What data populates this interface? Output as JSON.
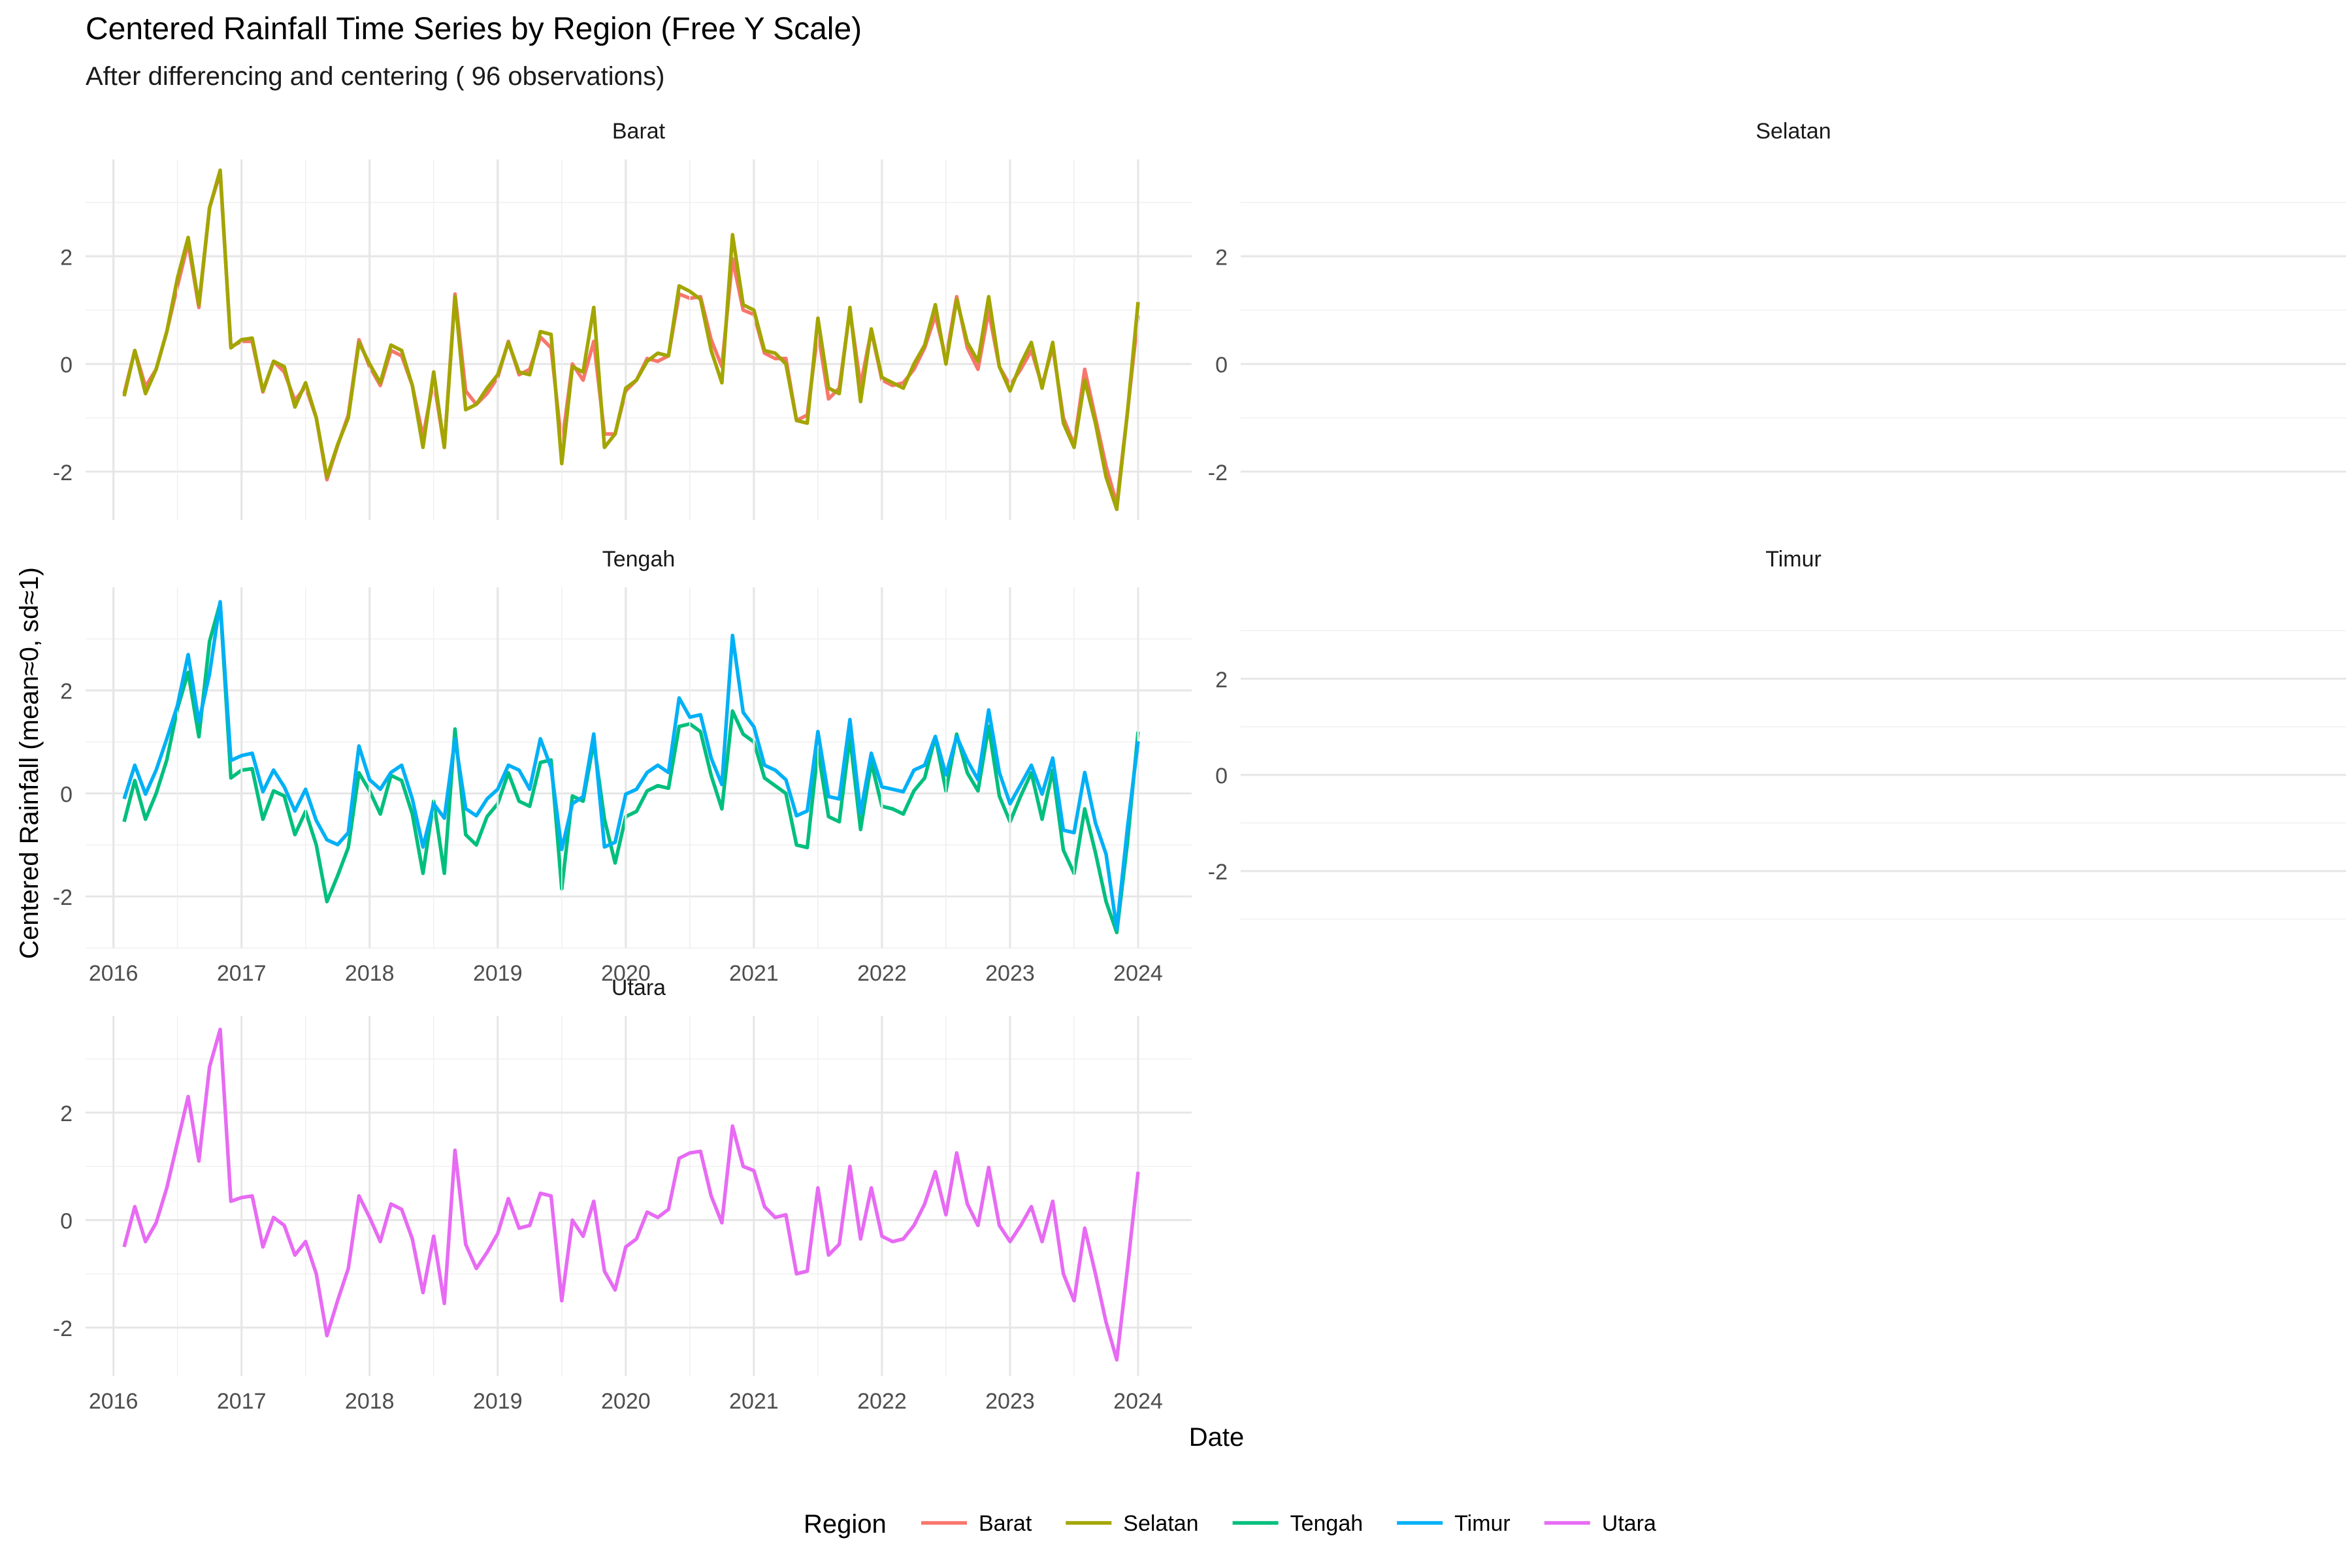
{
  "chart_data": {
    "type": "line",
    "title": "Centered Rainfall Time Series by Region (Free Y Scale)",
    "subtitle": "After differencing and centering ( 96  observations)",
    "xlabel": "Date",
    "ylabel": "Centered Rainfall (mean≈0, sd≈1)",
    "legend_title": "Region",
    "legend_position": "bottom",
    "grid": true,
    "x_ticks": [
      "2016",
      "2017",
      "2018",
      "2019",
      "2020",
      "2021",
      "2022",
      "2023",
      "2024"
    ],
    "x_start": "2016-02",
    "x_end": "2024-01",
    "y_ticks": [
      -2,
      0,
      2
    ],
    "series": [
      {
        "name": "Barat",
        "color": "#F8766D",
        "ylim": [
          -2.9,
          3.8
        ],
        "values": [
          -0.55,
          0.25,
          -0.42,
          -0.1,
          0.6,
          1.45,
          2.25,
          1.05,
          2.9,
          3.55,
          0.32,
          0.42,
          0.42,
          -0.52,
          0.05,
          -0.15,
          -0.68,
          -0.42,
          -1.0,
          -2.15,
          -1.52,
          -0.95,
          0.45,
          -0.05,
          -0.4,
          0.25,
          0.15,
          -0.4,
          -1.35,
          -0.3,
          -1.55,
          1.3,
          -0.5,
          -0.75,
          -0.55,
          -0.25,
          0.42,
          -0.2,
          -0.1,
          0.5,
          0.3,
          -1.5,
          0.0,
          -0.3,
          0.42,
          -1.3,
          -1.3,
          -0.5,
          -0.3,
          0.1,
          0.05,
          0.15,
          1.3,
          1.22,
          1.25,
          0.45,
          -0.05,
          1.95,
          1.0,
          0.92,
          0.2,
          0.1,
          0.1,
          -1.05,
          -0.95,
          0.6,
          -0.65,
          -0.45,
          1.0,
          -0.4,
          0.62,
          -0.3,
          -0.4,
          -0.35,
          -0.1,
          0.3,
          0.9,
          0.1,
          1.25,
          0.3,
          -0.1,
          0.98,
          -0.05,
          -0.4,
          -0.1,
          0.25,
          -0.4,
          0.32,
          -1.0,
          -1.5,
          -0.1,
          -1.0,
          -1.9,
          -2.6,
          -0.9,
          0.9
        ]
      },
      {
        "name": "Selatan",
        "color": "#A3A500",
        "ylim": [
          -2.9,
          3.8
        ],
        "values": [
          -0.6,
          0.25,
          -0.55,
          -0.1,
          0.6,
          1.6,
          2.35,
          1.1,
          2.9,
          3.6,
          0.3,
          0.45,
          0.48,
          -0.5,
          0.05,
          -0.05,
          -0.8,
          -0.35,
          -1.0,
          -2.1,
          -1.5,
          -1.0,
          0.4,
          0.0,
          -0.35,
          0.35,
          0.25,
          -0.4,
          -1.55,
          -0.15,
          -1.55,
          1.25,
          -0.85,
          -0.75,
          -0.45,
          -0.2,
          0.4,
          -0.15,
          -0.2,
          0.6,
          0.55,
          -1.85,
          -0.05,
          -0.15,
          1.05,
          -1.55,
          -1.3,
          -0.45,
          -0.3,
          0.05,
          0.2,
          0.15,
          1.45,
          1.35,
          1.2,
          0.25,
          -0.35,
          2.4,
          1.1,
          1.0,
          0.25,
          0.2,
          0.0,
          -1.05,
          -1.1,
          0.85,
          -0.45,
          -0.55,
          1.05,
          -0.7,
          0.65,
          -0.25,
          -0.35,
          -0.45,
          0.0,
          0.35,
          1.1,
          0.0,
          1.2,
          0.4,
          0.05,
          1.25,
          -0.05,
          -0.5,
          0.0,
          0.4,
          -0.45,
          0.4,
          -1.1,
          -1.55,
          -0.3,
          -1.1,
          -2.1,
          -2.7,
          -0.9,
          1.15
        ]
      },
      {
        "name": "Tengah",
        "color": "#00BF7D",
        "ylim": [
          -3.0,
          4.0
        ],
        "values": [
          -0.55,
          0.25,
          -0.5,
          0.0,
          0.65,
          1.65,
          2.35,
          1.1,
          2.95,
          3.7,
          0.3,
          0.45,
          0.48,
          -0.5,
          0.05,
          -0.05,
          -0.8,
          -0.35,
          -1.0,
          -2.1,
          -1.6,
          -1.05,
          0.4,
          0.05,
          -0.4,
          0.35,
          0.25,
          -0.4,
          -1.55,
          -0.15,
          -1.55,
          1.25,
          -0.8,
          -1.0,
          -0.45,
          -0.2,
          0.4,
          -0.15,
          -0.25,
          0.6,
          0.65,
          -1.85,
          -0.05,
          -0.15,
          1.0,
          -0.5,
          -1.35,
          -0.45,
          -0.35,
          0.05,
          0.15,
          0.1,
          1.3,
          1.35,
          1.2,
          0.35,
          -0.3,
          1.6,
          1.15,
          1.0,
          0.3,
          0.15,
          0.0,
          -1.0,
          -1.05,
          0.85,
          -0.45,
          -0.55,
          1.1,
          -0.7,
          0.6,
          -0.25,
          -0.3,
          -0.4,
          0.05,
          0.3,
          1.1,
          0.05,
          1.15,
          0.4,
          0.05,
          1.3,
          -0.05,
          -0.55,
          -0.05,
          0.4,
          -0.5,
          0.45,
          -1.1,
          -1.55,
          -0.3,
          -1.15,
          -2.1,
          -2.7,
          -0.95,
          1.2
        ]
      },
      {
        "name": "Timur",
        "color": "#00B0F6",
        "ylim": [
          -3.6,
          3.9
        ],
        "values": [
          -0.5,
          0.2,
          -0.4,
          0.1,
          0.75,
          1.45,
          2.5,
          1.1,
          2.1,
          3.6,
          0.3,
          0.4,
          0.45,
          -0.35,
          0.1,
          -0.25,
          -0.75,
          -0.3,
          -0.95,
          -1.35,
          -1.45,
          -1.2,
          0.6,
          -0.1,
          -0.3,
          0.05,
          0.2,
          -0.5,
          -1.5,
          -0.6,
          -0.9,
          0.75,
          -0.7,
          -0.85,
          -0.5,
          -0.3,
          0.2,
          0.1,
          -0.3,
          0.75,
          0.15,
          -1.55,
          -0.6,
          -0.45,
          0.85,
          -1.5,
          -1.4,
          -0.4,
          -0.3,
          0.05,
          0.2,
          0.05,
          1.6,
          1.2,
          1.25,
          0.35,
          -0.2,
          2.9,
          1.3,
          1.0,
          0.2,
          0.1,
          -0.1,
          -0.85,
          -0.75,
          0.9,
          -0.45,
          -0.5,
          1.15,
          -0.8,
          0.45,
          -0.25,
          -0.3,
          -0.35,
          0.1,
          0.2,
          0.8,
          0.0,
          0.8,
          0.3,
          -0.1,
          1.35,
          0.05,
          -0.6,
          -0.2,
          0.2,
          -0.4,
          0.35,
          -1.15,
          -1.2,
          0.05,
          -1.0,
          -1.65,
          -3.2,
          -1.1,
          0.7
        ]
      },
      {
        "name": "Utara",
        "color": "#E76BF3",
        "ylim": [
          -2.9,
          3.8
        ],
        "values": [
          -0.5,
          0.25,
          -0.4,
          -0.05,
          0.6,
          1.45,
          2.3,
          1.1,
          2.85,
          3.55,
          0.35,
          0.42,
          0.45,
          -0.5,
          0.05,
          -0.1,
          -0.65,
          -0.4,
          -1.0,
          -2.15,
          -1.5,
          -0.9,
          0.45,
          0.05,
          -0.4,
          0.3,
          0.2,
          -0.35,
          -1.35,
          -0.3,
          -1.55,
          1.3,
          -0.45,
          -0.9,
          -0.6,
          -0.25,
          0.4,
          -0.15,
          -0.1,
          0.5,
          0.45,
          -1.5,
          0.0,
          -0.3,
          0.35,
          -0.95,
          -1.3,
          -0.5,
          -0.35,
          0.15,
          0.05,
          0.2,
          1.15,
          1.25,
          1.28,
          0.45,
          -0.05,
          1.75,
          1.0,
          0.92,
          0.25,
          0.05,
          0.1,
          -1.0,
          -0.95,
          0.6,
          -0.65,
          -0.45,
          1.0,
          -0.35,
          0.6,
          -0.3,
          -0.4,
          -0.35,
          -0.1,
          0.3,
          0.9,
          0.1,
          1.25,
          0.3,
          -0.1,
          0.98,
          -0.1,
          -0.4,
          -0.1,
          0.25,
          -0.4,
          0.35,
          -1.0,
          -1.5,
          -0.15,
          -1.0,
          -1.9,
          -2.6,
          -0.9,
          0.9
        ]
      }
    ]
  }
}
